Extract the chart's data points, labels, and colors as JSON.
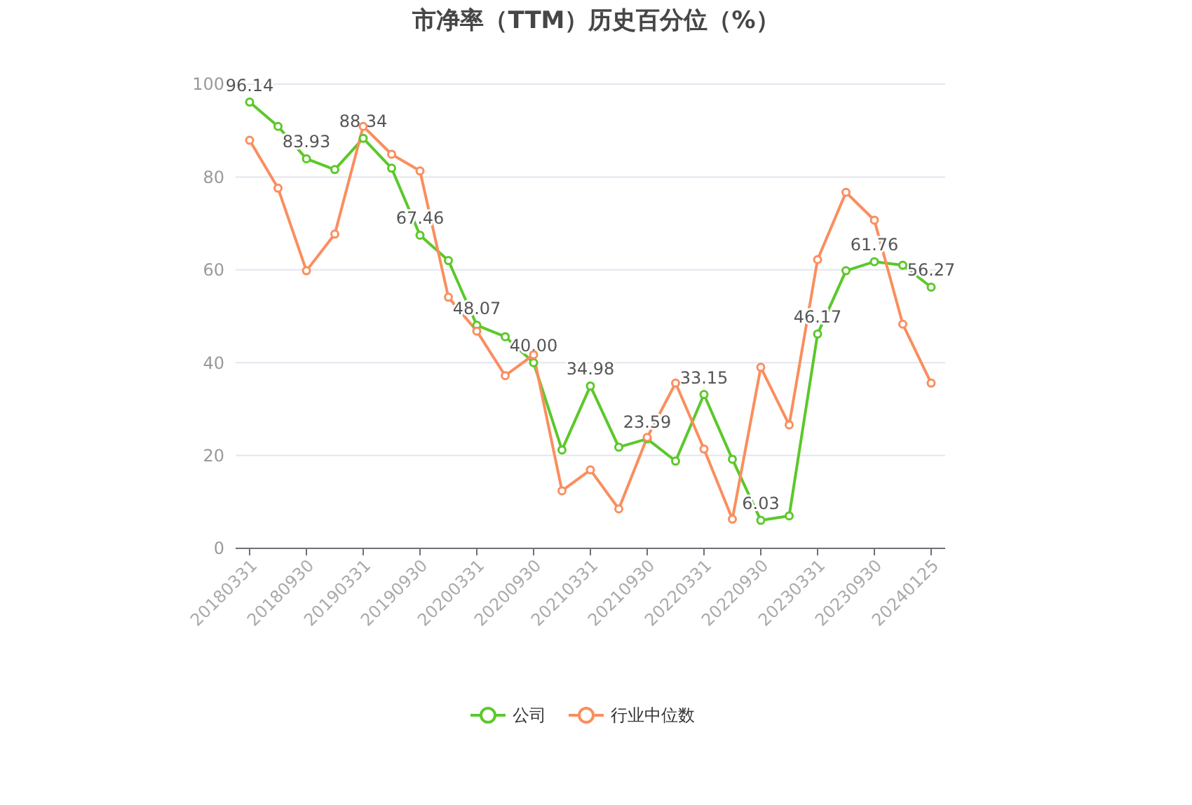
{
  "chart_data": {
    "type": "line",
    "title": "市净率（TTM）历史百分位（%）",
    "categories": [
      "20180331",
      null,
      "20180930",
      null,
      "20190331",
      null,
      "20190930",
      null,
      "20200331",
      null,
      "20200930",
      null,
      "20210331",
      null,
      "20210930",
      null,
      "20220331",
      null,
      "20220930",
      null,
      "20230331",
      null,
      "20230930",
      null,
      "20240125"
    ],
    "series": [
      {
        "name": "公司",
        "color": "#5cc82a",
        "values": [
          96.14,
          90.9,
          83.93,
          81.6,
          88.34,
          81.9,
          67.46,
          62.0,
          48.07,
          45.6,
          40.0,
          21.2,
          34.98,
          21.8,
          23.59,
          18.8,
          33.15,
          19.2,
          6.03,
          7.0,
          46.17,
          59.8,
          61.76,
          61.0,
          56.27
        ],
        "value_labels": [
          "96.14",
          null,
          "83.93",
          null,
          "88.34",
          null,
          "67.46",
          null,
          "48.07",
          null,
          "40.00",
          null,
          "34.98",
          null,
          "23.59",
          null,
          "33.15",
          null,
          "6.03",
          null,
          "46.17",
          null,
          "61.76",
          null,
          "56.27"
        ]
      },
      {
        "name": "行业中位数",
        "color": "#fa8e5e",
        "values": [
          87.9,
          77.6,
          59.8,
          67.7,
          90.9,
          84.9,
          81.3,
          54.1,
          46.8,
          37.2,
          41.7,
          12.4,
          16.9,
          8.5,
          23.9,
          35.6,
          21.4,
          6.3,
          39.0,
          26.6,
          62.2,
          76.7,
          70.7,
          48.3,
          35.6
        ]
      }
    ],
    "ylim": [
      0,
      100
    ],
    "yticks": [
      0,
      20,
      40,
      60,
      80,
      100
    ],
    "grid": "y",
    "legend": "bottom",
    "marker": "circle",
    "line_style": "solid"
  }
}
